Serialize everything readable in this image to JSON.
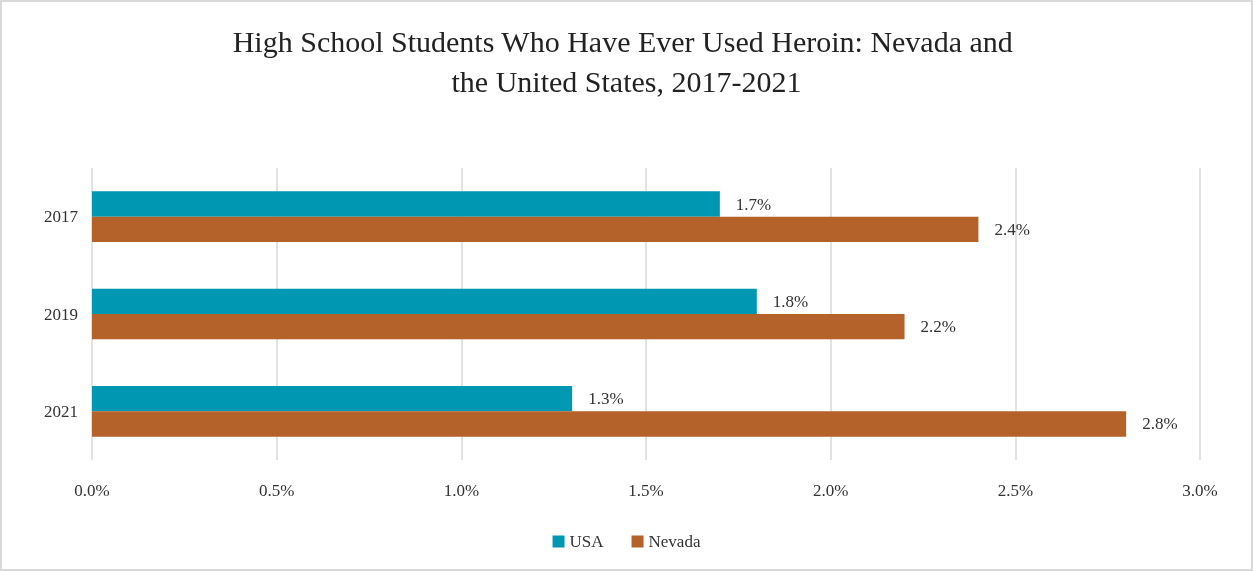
{
  "chart_data": {
    "type": "bar",
    "orientation": "horizontal",
    "title": "High School Students Who Have Ever Used Heroin: Nevada and the United States, 2017-2021",
    "categories": [
      "2017",
      "2019",
      "2021"
    ],
    "series": [
      {
        "name": "USA",
        "color": "#0097b2",
        "values": [
          1.7,
          1.8,
          1.3
        ],
        "value_labels": [
          "1.7%",
          "1.8%",
          "1.3%"
        ]
      },
      {
        "name": "Nevada",
        "color": "#b5612a",
        "values": [
          2.4,
          2.2,
          2.8
        ],
        "value_labels": [
          "2.4%",
          "2.2%",
          "2.8%"
        ]
      }
    ],
    "xlim": [
      0,
      3
    ],
    "xticks": [
      {
        "value": 0,
        "label": "0.0%"
      },
      {
        "value": 0.5,
        "label": "0.5%"
      },
      {
        "value": 1,
        "label": "1.0%"
      },
      {
        "value": 1.5,
        "label": "1.5%"
      },
      {
        "value": 2,
        "label": "2.0%"
      },
      {
        "value": 2.5,
        "label": "2.5%"
      },
      {
        "value": 3,
        "label": "3.0%"
      }
    ],
    "grid": "x",
    "legend": "bottom"
  }
}
